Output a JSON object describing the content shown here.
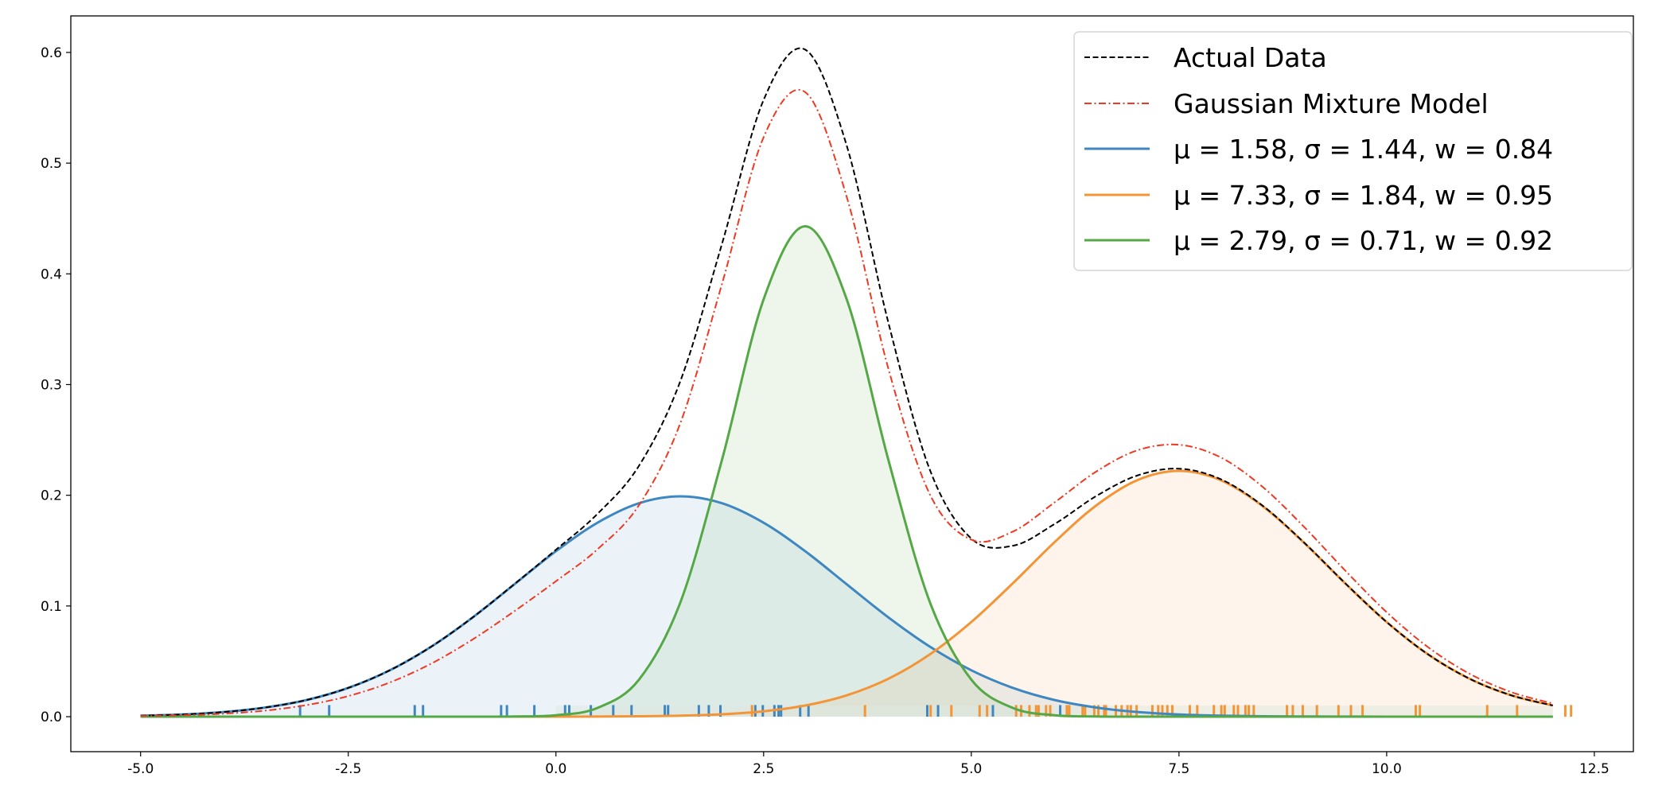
{
  "chart_data": {
    "type": "line",
    "title": "",
    "xlabel": "",
    "ylabel": "",
    "xlim": [
      -5.84,
      12.97
    ],
    "ylim": [
      -0.0316,
      0.633
    ],
    "grid": false,
    "legend_position": "top-right",
    "x_ticks": [
      "-5.0",
      "-2.5",
      "0.0",
      "2.5",
      "5.0",
      "7.5",
      "10.0",
      "12.5"
    ],
    "y_ticks": [
      "0.0",
      "0.1",
      "0.2",
      "0.3",
      "0.4",
      "0.5",
      "0.6"
    ],
    "x": [
      -5,
      -4.5,
      -4,
      -3.5,
      -3,
      -2.5,
      -2,
      -1.5,
      -1,
      -0.5,
      0,
      0.5,
      1,
      1.5,
      2,
      2.5,
      3,
      3.5,
      4,
      4.5,
      5,
      5.5,
      6,
      6.5,
      7,
      7.5,
      8,
      8.5,
      9,
      9.5,
      10,
      10.5,
      11,
      11.5,
      12
    ],
    "series": [
      {
        "name": "Actual Data",
        "color": "#000000",
        "style": "dashed",
        "values": [
          0.0009,
          0.002,
          0.0042,
          0.0083,
          0.0151,
          0.026,
          0.0419,
          0.0633,
          0.0898,
          0.1198,
          0.1508,
          0.1832,
          0.2267,
          0.3036,
          0.4274,
          0.5571,
          0.6026,
          0.5159,
          0.3564,
          0.2232,
          0.1609,
          0.1544,
          0.1739,
          0.1991,
          0.2179,
          0.224,
          0.2146,
          0.191,
          0.1577,
          0.1206,
          0.0855,
          0.0562,
          0.0342,
          0.0193,
          0.0101
        ]
      },
      {
        "name": "Gaussian Mixture Model",
        "color": "#ee3a23",
        "style": "dashdot",
        "values": [
          0.0006,
          0.0013,
          0.0027,
          0.0055,
          0.0105,
          0.0186,
          0.0309,
          0.048,
          0.0699,
          0.0953,
          0.1224,
          0.1512,
          0.1911,
          0.2657,
          0.3912,
          0.5234,
          0.5642,
          0.4696,
          0.3148,
          0.201,
          0.1599,
          0.1672,
          0.1934,
          0.2212,
          0.2406,
          0.2456,
          0.2343,
          0.208,
          0.1719,
          0.1321,
          0.0944,
          0.0627,
          0.0387,
          0.0222,
          0.0119
        ]
      },
      {
        "name": "μ = 1.58, σ = 1.44, w = 0.84",
        "color": "#3f87c1",
        "style": "solid",
        "filled": true,
        "values": [
          0.0009,
          0.002,
          0.0042,
          0.0083,
          0.0151,
          0.026,
          0.0419,
          0.0633,
          0.0898,
          0.1196,
          0.1495,
          0.1752,
          0.1928,
          0.199,
          0.1928,
          0.1752,
          0.1495,
          0.1196,
          0.0898,
          0.0633,
          0.0419,
          0.026,
          0.0151,
          0.0083,
          0.0042,
          0.002,
          0.0009,
          0.0004,
          0.0002,
          0.0001,
          0,
          0,
          0,
          0,
          0
        ]
      },
      {
        "name": "μ = 7.33, σ = 1.84, w = 0.95",
        "color": "#f39536",
        "style": "solid",
        "filled": true,
        "values": [
          0,
          0,
          0,
          0,
          0,
          0,
          0,
          0,
          0,
          0,
          0,
          0.0001,
          0.0004,
          0.0009,
          0.0022,
          0.0049,
          0.0101,
          0.0193,
          0.0342,
          0.0562,
          0.0855,
          0.1205,
          0.1575,
          0.1906,
          0.2137,
          0.222,
          0.2137,
          0.1906,
          0.1575,
          0.1205,
          0.0855,
          0.0562,
          0.0342,
          0.0193,
          0.0101
        ]
      },
      {
        "name": "μ = 2.79, σ = 0.71, w = 0.92",
        "color": "#55a846",
        "style": "solid",
        "filled": true,
        "values": [
          0,
          0,
          0,
          0,
          0,
          0,
          0,
          0,
          0,
          0.0002,
          0.0013,
          0.0079,
          0.0335,
          0.1037,
          0.2324,
          0.377,
          0.443,
          0.377,
          0.2324,
          0.1037,
          0.0335,
          0.0079,
          0.0013,
          0.0002,
          0,
          0,
          0,
          0,
          0,
          0,
          0,
          0,
          0,
          0,
          0
        ]
      }
    ],
    "rug": [
      {
        "color": "#3f87c1",
        "values": [
          -3.08,
          -2.73,
          -1.7,
          -1.6,
          -0.66,
          -0.59,
          -0.26,
          0.11,
          0.16,
          0.42,
          0.69,
          0.91,
          1.31,
          1.35,
          1.72,
          1.84,
          1.98,
          2.4,
          2.49,
          2.63,
          2.68,
          2.71,
          2.94,
          3.04,
          4.47,
          4.6,
          5.26,
          6.07
        ]
      },
      {
        "color": "#f39536",
        "values": [
          2.36,
          3.72,
          4.51,
          4.76,
          5.1,
          5.19,
          5.54,
          5.6,
          5.7,
          5.78,
          5.81,
          5.9,
          5.95,
          6.15,
          6.18,
          6.34,
          6.37,
          6.48,
          6.53,
          6.6,
          6.62,
          6.74,
          6.81,
          6.88,
          6.92,
          6.99,
          7.18,
          7.25,
          7.3,
          7.36,
          7.42,
          7.63,
          7.72,
          7.92,
          8.01,
          8.05,
          8.16,
          8.21,
          8.3,
          8.34,
          8.4,
          8.8,
          8.87,
          8.99,
          9.16,
          9.42,
          9.57,
          9.71,
          10.35,
          10.4,
          11.21,
          11.57,
          12.15,
          12.22
        ]
      }
    ]
  }
}
